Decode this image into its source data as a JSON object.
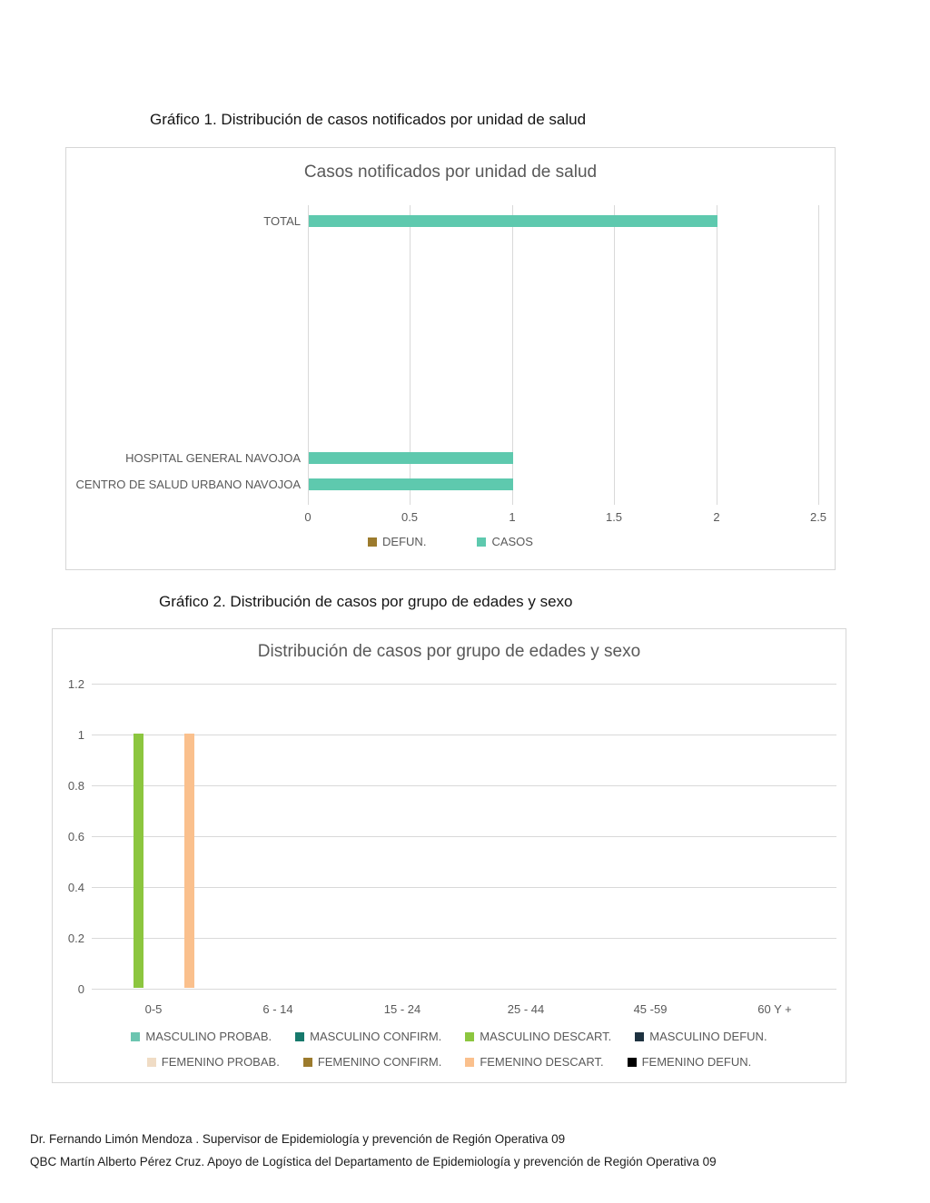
{
  "page": {
    "title1": "Gráfico 1. Distribución de casos notificados por unidad de salud",
    "title2": "Gráfico 2. Distribución de casos por grupo de edades y sexo",
    "footer_line1": "Dr. Fernando Limón Mendoza .  Supervisor de Epidemiología y prevención de Región Operativa 09",
    "footer_line2": "QBC  Martín Alberto Pérez Cruz. Apoyo de Logística del Departamento de Epidemiología y prevención de Región Operativa 09"
  },
  "chart_data": [
    {
      "type": "bar",
      "orientation": "horizontal",
      "title": "Casos notificados por unidad de salud",
      "categories": [
        "TOTAL",
        "HOSPITAL GENERAL NAVOJOA",
        "CENTRO DE SALUD URBANO NAVOJOA"
      ],
      "series": [
        {
          "name": "DEFUN.",
          "color": "#9c7b2d",
          "values": [
            0,
            0,
            0
          ]
        },
        {
          "name": "CASOS",
          "color": "#5ec9ae",
          "values": [
            2,
            1,
            1
          ]
        }
      ],
      "xlabel": "",
      "ylabel": "",
      "xlim": [
        0,
        2.5
      ],
      "xticks": [
        0,
        0.5,
        1,
        1.5,
        2,
        2.5
      ],
      "grid": "vertical",
      "legend_position": "bottom"
    },
    {
      "type": "bar",
      "orientation": "vertical",
      "title": "Distribución de casos por grupo de edades y sexo",
      "categories": [
        "0-5",
        "6 - 14",
        "15 - 24",
        "25 - 44",
        "45 -59",
        "60 Y +"
      ],
      "series": [
        {
          "name": "MASCULINO PROBAB.",
          "color": "#6cc5b0",
          "values": [
            0,
            0,
            0,
            0,
            0,
            0
          ]
        },
        {
          "name": "MASCULINO CONFIRM.",
          "color": "#17796c",
          "values": [
            0,
            0,
            0,
            0,
            0,
            0
          ]
        },
        {
          "name": "MASCULINO DESCART.",
          "color": "#8cc63f",
          "values": [
            1,
            0,
            0,
            0,
            0,
            0
          ]
        },
        {
          "name": "MASCULINO DEFUN.",
          "color": "#1e3240",
          "values": [
            0,
            0,
            0,
            0,
            0,
            0
          ]
        },
        {
          "name": "FEMENINO PROBAB.",
          "color": "#f0dcc5",
          "values": [
            0,
            0,
            0,
            0,
            0,
            0
          ]
        },
        {
          "name": "FEMENINO CONFIRM.",
          "color": "#9c7b2d",
          "values": [
            0,
            0,
            0,
            0,
            0,
            0
          ]
        },
        {
          "name": "FEMENINO DESCART.",
          "color": "#fac08d",
          "values": [
            1,
            0,
            0,
            0,
            0,
            0
          ]
        },
        {
          "name": "FEMENINO DEFUN.",
          "color": "#000000",
          "values": [
            0,
            0,
            0,
            0,
            0,
            0
          ]
        }
      ],
      "xlabel": "",
      "ylabel": "",
      "ylim": [
        0,
        1.2
      ],
      "yticks": [
        1.2,
        1,
        0.8,
        0.6,
        0.4,
        0.2,
        0
      ],
      "grid": "horizontal",
      "legend_position": "bottom"
    }
  ]
}
